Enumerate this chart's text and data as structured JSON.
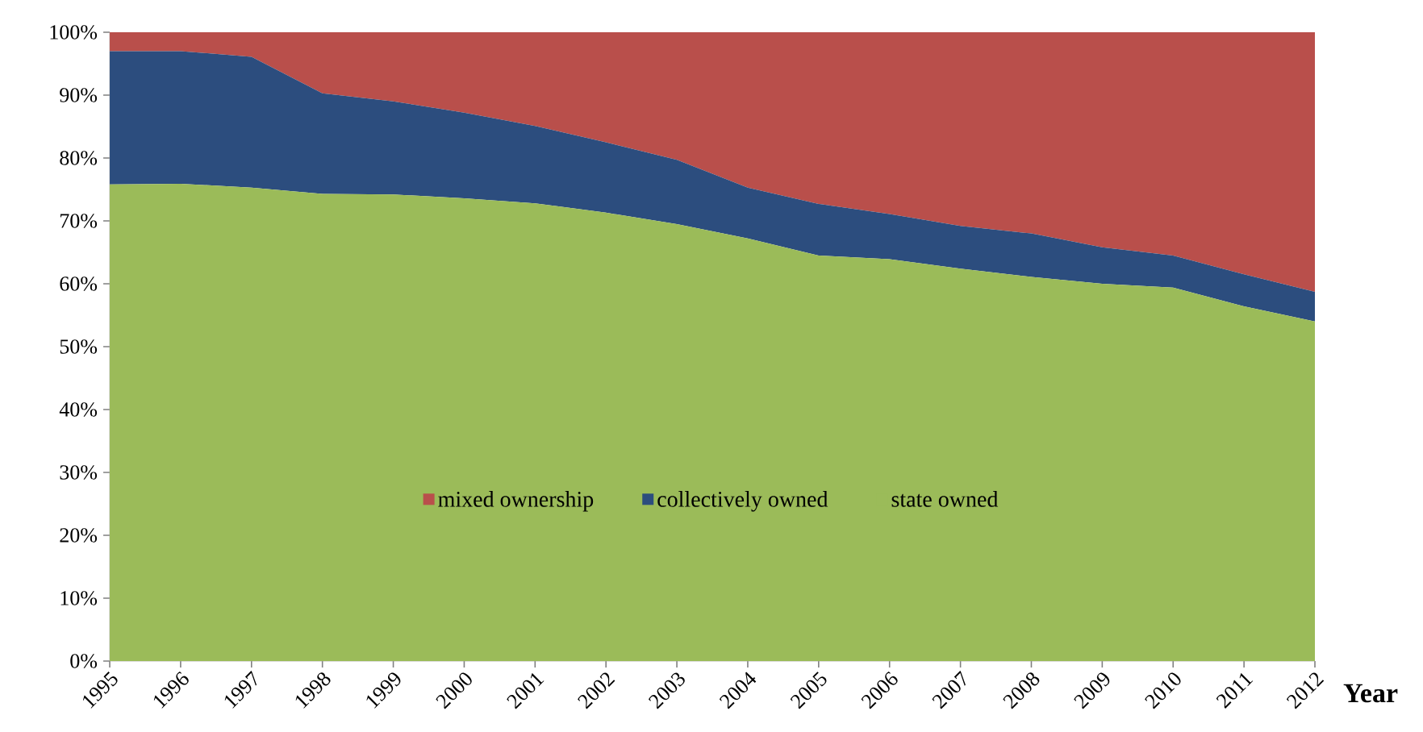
{
  "chart_data": {
    "type": "area",
    "stacked": true,
    "xlabel": "Year",
    "categories": [
      "1995",
      "1996",
      "1997",
      "1998",
      "1999",
      "2000",
      "2001",
      "2002",
      "2003",
      "2004",
      "2005",
      "2006",
      "2007",
      "2008",
      "2009",
      "2010",
      "2011",
      "2012"
    ],
    "series": [
      {
        "name": "state owned",
        "color": "#9bbb59",
        "values": [
          75.8,
          75.9,
          75.3,
          74.3,
          74.2,
          73.6,
          72.8,
          71.3,
          69.5,
          67.2,
          64.5,
          63.9,
          62.4,
          61.1,
          60.0,
          59.4,
          56.4,
          54.0
        ]
      },
      {
        "name": "collectively owned",
        "color": "#2c4d7e",
        "values": [
          21.2,
          21.1,
          20.8,
          16.0,
          14.8,
          13.6,
          12.3,
          11.2,
          10.2,
          8.1,
          8.2,
          7.2,
          6.8,
          6.9,
          5.8,
          5.1,
          5.1,
          4.7
        ]
      },
      {
        "name": "mixed ownership",
        "color": "#b94f4b",
        "values": [
          3.0,
          3.0,
          3.9,
          9.7,
          11.0,
          12.8,
          14.9,
          17.5,
          20.3,
          24.7,
          27.3,
          28.9,
          30.8,
          32.0,
          34.2,
          35.5,
          38.5,
          41.3
        ]
      }
    ],
    "ylim": [
      0,
      100
    ],
    "yticks": [
      {
        "value": 0,
        "label": "0%"
      },
      {
        "value": 10,
        "label": "10%"
      },
      {
        "value": 20,
        "label": "20%"
      },
      {
        "value": 30,
        "label": "30%"
      },
      {
        "value": 40,
        "label": "40%"
      },
      {
        "value": 50,
        "label": "50%"
      },
      {
        "value": 60,
        "label": "60%"
      },
      {
        "value": 70,
        "label": "70%"
      },
      {
        "value": 80,
        "label": "80%"
      },
      {
        "value": 90,
        "label": "90%"
      },
      {
        "value": 100,
        "label": "100%"
      }
    ],
    "legend": "bottom",
    "grid": false
  }
}
